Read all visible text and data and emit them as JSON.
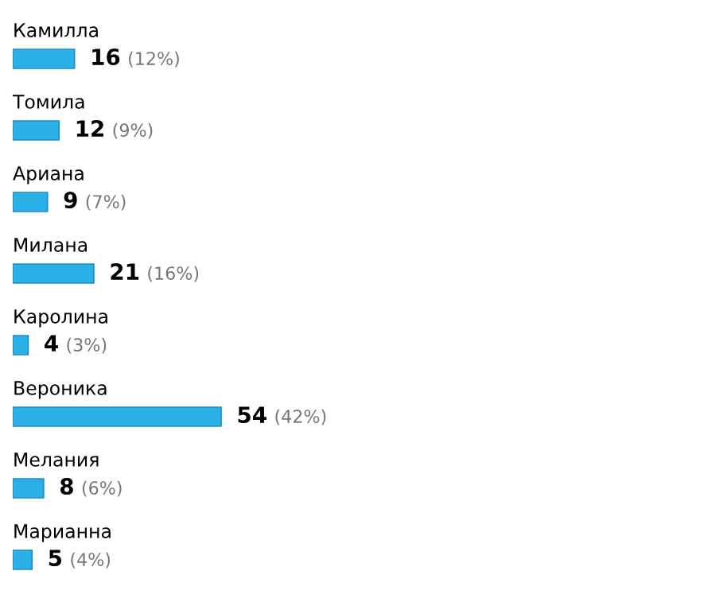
{
  "chart_data": {
    "type": "bar",
    "orientation": "horizontal",
    "categories": [
      "Камилла",
      "Томила",
      "Ариана",
      "Милана",
      "Каролина",
      "Вероника",
      "Мелания",
      "Марианна"
    ],
    "values": [
      16,
      12,
      9,
      21,
      4,
      54,
      8,
      5
    ],
    "value_labels": [
      "16 (12%)",
      "12 (9%)",
      "9 (7%)",
      "21 (16%)",
      "4 (3%)",
      "54 (42%)",
      "8 (6%)",
      "5 (4%)"
    ],
    "color": "#2bb0e8"
  }
}
